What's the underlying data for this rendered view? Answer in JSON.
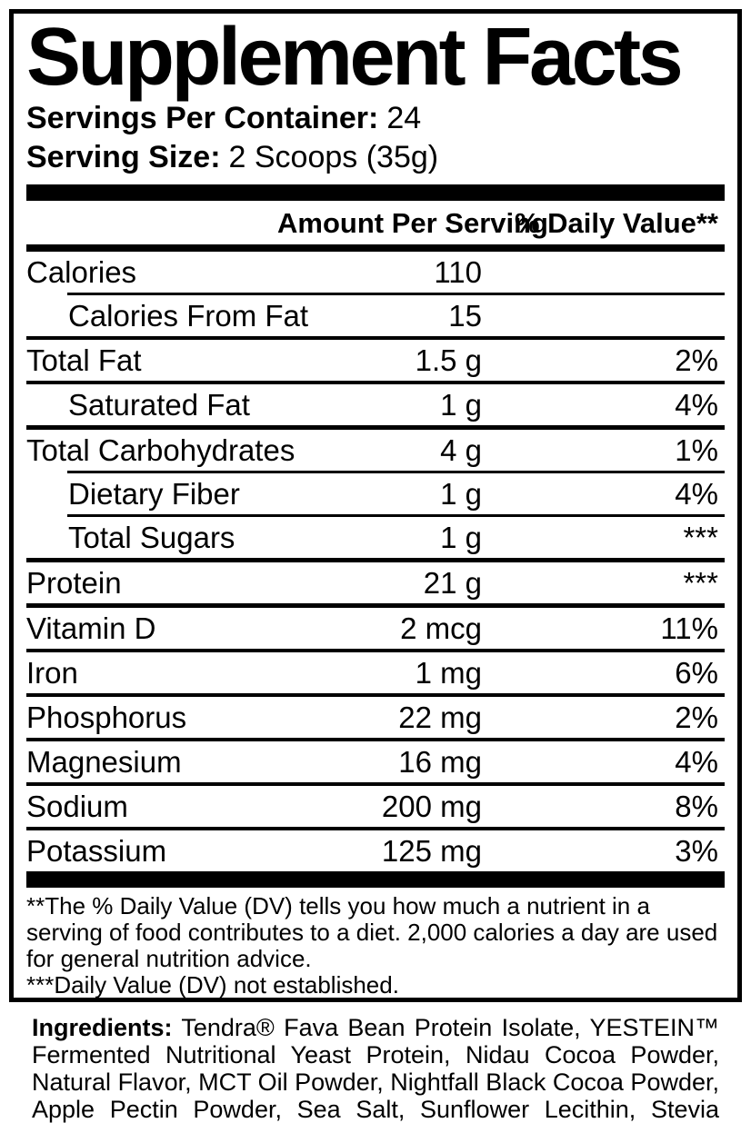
{
  "label": {
    "title": "Supplement Facts",
    "servings_per_container": {
      "label": "Servings Per Container:",
      "value": "24"
    },
    "serving_size": {
      "label": "Serving Size:",
      "value": "2 Scoops (35g)"
    },
    "columns": {
      "amount": "Amount Per Serving",
      "daily_value": "% Daily Value**"
    },
    "rows": [
      {
        "name": "Calories",
        "amount": "110",
        "dv": "",
        "indent": false,
        "rule": "none"
      },
      {
        "name": "Calories From Fat",
        "amount": "15",
        "dv": "",
        "indent": true,
        "rule": "indented"
      },
      {
        "name": "Total Fat",
        "amount": "1.5 g",
        "dv": "2%",
        "indent": false,
        "rule": "normal"
      },
      {
        "name": "Saturated Fat",
        "amount": "1 g",
        "dv": "4%",
        "indent": true,
        "rule": "normal"
      },
      {
        "name": "Total Carbohydrates",
        "amount": "4 g",
        "dv": "1%",
        "indent": false,
        "rule": "heavy"
      },
      {
        "name": "Dietary Fiber",
        "amount": "1 g",
        "dv": "4%",
        "indent": true,
        "rule": "indented"
      },
      {
        "name": "Total Sugars",
        "amount": "1 g",
        "dv": "***",
        "indent": true,
        "rule": "indented"
      },
      {
        "name": "Protein",
        "amount": "21 g",
        "dv": "***",
        "indent": false,
        "rule": "heavy"
      },
      {
        "name": "Vitamin D",
        "amount": "2 mcg",
        "dv": "11%",
        "indent": false,
        "rule": "heavy"
      },
      {
        "name": "Iron",
        "amount": "1 mg",
        "dv": "6%",
        "indent": false,
        "rule": "normal"
      },
      {
        "name": "Phosphorus",
        "amount": "22 mg",
        "dv": "2%",
        "indent": false,
        "rule": "normal"
      },
      {
        "name": "Magnesium",
        "amount": "16 mg",
        "dv": "4%",
        "indent": false,
        "rule": "normal"
      },
      {
        "name": "Sodium",
        "amount": "200 mg",
        "dv": "8%",
        "indent": false,
        "rule": "normal"
      },
      {
        "name": "Potassium",
        "amount": "125 mg",
        "dv": "3%",
        "indent": false,
        "rule": "normal"
      }
    ],
    "footnotes": {
      "daily_value": "**The % Daily Value (DV) tells you how much a nutrient in a serving of food contributes to a diet. 2,000 calories a day are used for general nutrition advice.",
      "not_established": "***Daily Value (DV) not established."
    },
    "colors": {
      "ink": "#000000",
      "paper": "#ffffff"
    }
  },
  "ingredients": {
    "label": "Ingredients:",
    "text": "Tendra® Fava Bean Protein Isolate, YESTEIN™ Fermented Nutritional Yeast Protein, Nidau Cocoa Powder, Natural Flavor, MCT Oil Powder, Nightfall Black Cocoa Powder, Apple Pectin Powder, Sea Salt, Sunflower Lecithin, Stevia Extract (leaf)."
  }
}
